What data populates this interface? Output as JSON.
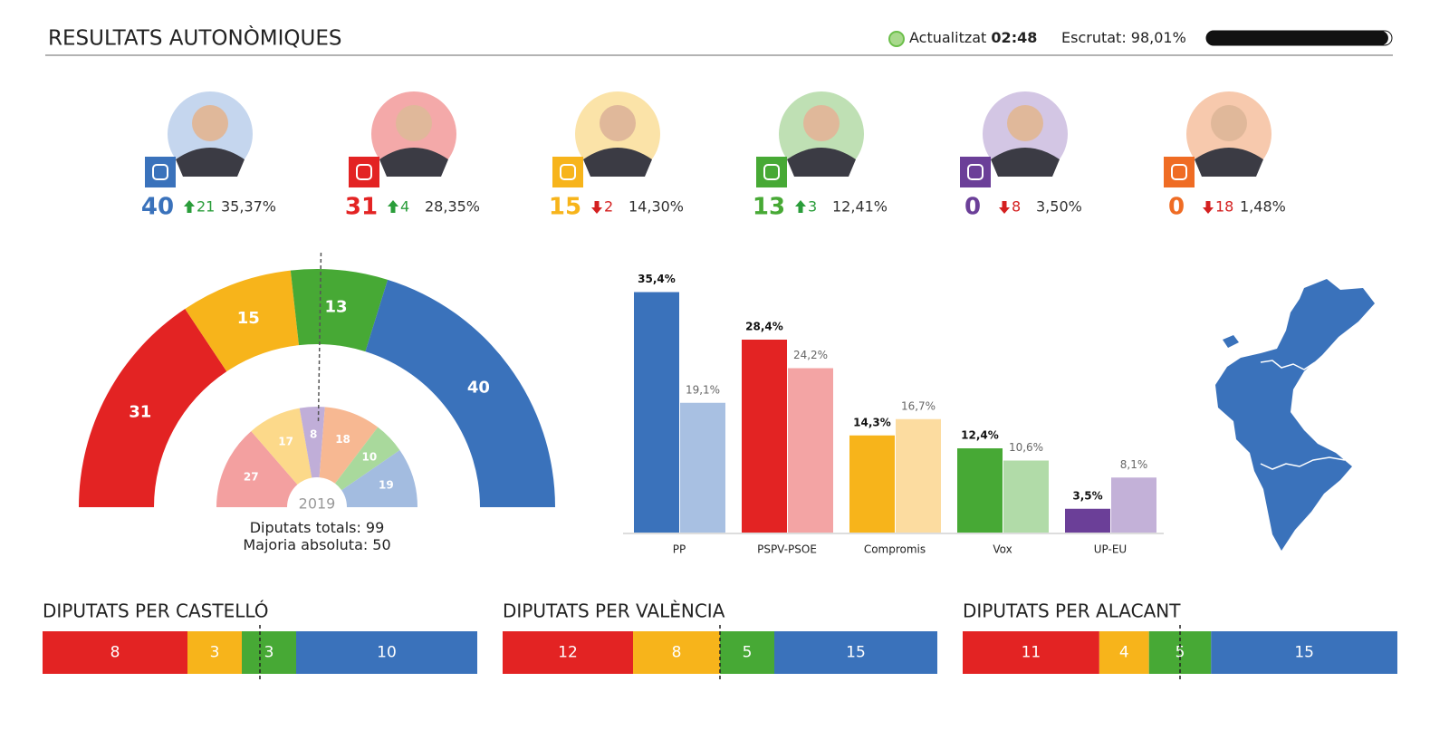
{
  "header": {
    "title": "RESULTATS AUTONÒMIQUES",
    "updated_label": "Actualitzat",
    "updated_time": "02:48",
    "scrutiny_label": "Escrutat:",
    "scrutiny": {
      "value": 98.01,
      "label": "98,01%"
    }
  },
  "parties": [
    {
      "seats": 40,
      "change": 21,
      "trend": "up",
      "percent": {
        "value": 35.37,
        "label": "35,37%"
      },
      "color": "#3a72bb",
      "photo_color": "#c5d6ee"
    },
    {
      "seats": 31,
      "change": 4,
      "trend": "up",
      "percent": {
        "value": 28.35,
        "label": "28,35%"
      },
      "color": "#e32323",
      "photo_color": "#f4a9a9"
    },
    {
      "seats": 15,
      "change": 2,
      "trend": "down",
      "percent": {
        "value": 14.3,
        "label": "14,30%"
      },
      "color": "#f7b41b",
      "photo_color": "#fbe3a8"
    },
    {
      "seats": 13,
      "change": 3,
      "trend": "up",
      "percent": {
        "value": 12.41,
        "label": "12,41%"
      },
      "color": "#47a935",
      "photo_color": "#bfe0b4"
    },
    {
      "seats": 0,
      "change": 8,
      "trend": "down",
      "percent": {
        "value": 3.5,
        "label": "3,50%"
      },
      "color": "#6b3f98",
      "photo_color": "#d3c6e4"
    },
    {
      "seats": 0,
      "change": 18,
      "trend": "down",
      "percent": {
        "value": 1.48,
        "label": "1,48%"
      },
      "color": "#ef6c24",
      "photo_color": "#f7c9ad"
    }
  ],
  "chart_data": [
    {
      "type": "hemicycle",
      "series": [
        {
          "values": [
            31,
            15,
            13,
            40
          ],
          "colors": [
            "#e32323",
            "#f7b41b",
            "#47a935",
            "#3a72bb"
          ]
        },
        {
          "name": "2019",
          "values": [
            27,
            17,
            8,
            18,
            10,
            19
          ],
          "colors": [
            "#f3a0a0",
            "#fcd98a",
            "#c0aed8",
            "#f7b892",
            "#a9d99c",
            "#a3bce0"
          ]
        }
      ],
      "total_label": "Diputats totals:",
      "total": 99,
      "majority_label": "Majoria absoluta:",
      "majority": 50
    },
    {
      "type": "bar",
      "categories": [
        "PP",
        "PSPV-PSOE",
        "Compromis",
        "Vox",
        "UP-EU"
      ],
      "series": [
        {
          "values": [
            35.4,
            28.4,
            14.3,
            12.4,
            3.5
          ],
          "value_labels": [
            "35,4%",
            "28,4%",
            "14,3%",
            "12,4%",
            "3,5%"
          ],
          "colors": [
            "#3a72bb",
            "#e32323",
            "#f7b41b",
            "#47a935",
            "#6b3f98"
          ]
        },
        {
          "values": [
            19.1,
            24.2,
            16.7,
            10.6,
            8.1
          ],
          "value_labels": [
            "19,1%",
            "24,2%",
            "16,7%",
            "10,6%",
            "8,1%"
          ],
          "colors": [
            "#a8c0e2",
            "#f3a4a4",
            "#fcdca0",
            "#b1dba8",
            "#c3b1d8"
          ]
        }
      ]
    },
    {
      "type": "stacked_bar",
      "title": "DIPUTATS PER CASTELLÓ",
      "values": [
        8,
        3,
        3,
        10
      ],
      "colors": [
        "#e32323",
        "#f7b41b",
        "#47a935",
        "#3a72bb"
      ]
    },
    {
      "type": "stacked_bar",
      "title": "DIPUTATS PER VALÈNCIA",
      "values": [
        12,
        8,
        5,
        15
      ],
      "colors": [
        "#e32323",
        "#f7b41b",
        "#47a935",
        "#3a72bb"
      ]
    },
    {
      "type": "stacked_bar",
      "title": "DIPUTATS PER ALACANT",
      "values": [
        11,
        4,
        5,
        15
      ],
      "colors": [
        "#e32323",
        "#f7b41b",
        "#47a935",
        "#3a72bb"
      ]
    }
  ]
}
